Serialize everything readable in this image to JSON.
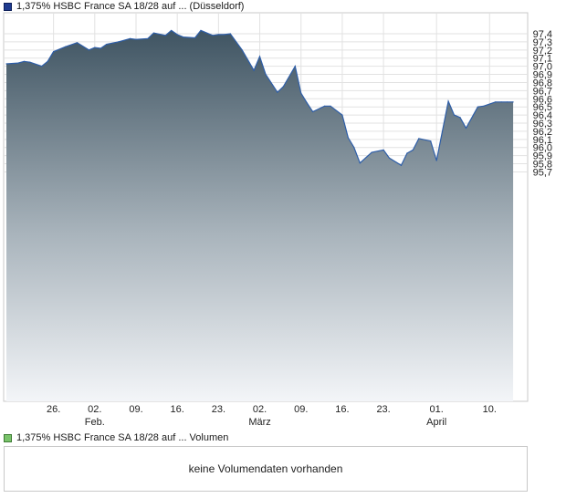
{
  "legend": {
    "price_label": "1,375% HSBC France SA 18/28 auf ... (Düsseldorf)",
    "volume_label": "1,375% HSBC France SA 18/28 auf ... Volumen",
    "price_color": "#1f3b8f",
    "volume_color": "#79c36a"
  },
  "volume_panel": {
    "message": "keine Volumendaten vorhanden"
  },
  "chart_data": {
    "type": "area",
    "ylim": [
      95.63,
      97.5
    ],
    "yticks": [
      "97,4",
      "97,3",
      "97,2",
      "97,1",
      "97,0",
      "96,9",
      "96,8",
      "96,7",
      "96,6",
      "96,5",
      "96,4",
      "96,3",
      "96,2",
      "96,1",
      "96,0",
      "95,9",
      "95,8",
      "95,7"
    ],
    "ytick_values": [
      97.4,
      97.3,
      97.2,
      97.1,
      97.0,
      96.9,
      96.8,
      96.7,
      96.6,
      96.5,
      96.4,
      96.3,
      96.2,
      96.1,
      96.0,
      95.9,
      95.8,
      95.7
    ],
    "xlim": [
      "2021-01-18",
      "2021-04-16"
    ],
    "xticks": [
      {
        "date": "2021-01-26",
        "label": "26.",
        "sublabel": ""
      },
      {
        "date": "2021-02-02",
        "label": "02.",
        "sublabel": "Feb."
      },
      {
        "date": "2021-02-09",
        "label": "09.",
        "sublabel": ""
      },
      {
        "date": "2021-02-16",
        "label": "16.",
        "sublabel": ""
      },
      {
        "date": "2021-02-23",
        "label": "23.",
        "sublabel": ""
      },
      {
        "date": "2021-03-02",
        "label": "02.",
        "sublabel": "März"
      },
      {
        "date": "2021-03-09",
        "label": "09.",
        "sublabel": ""
      },
      {
        "date": "2021-03-16",
        "label": "16.",
        "sublabel": ""
      },
      {
        "date": "2021-03-23",
        "label": "23.",
        "sublabel": ""
      },
      {
        "date": "2021-04-01",
        "label": "01.",
        "sublabel": "April"
      },
      {
        "date": "2021-04-10",
        "label": "10.",
        "sublabel": ""
      }
    ],
    "x": [
      "2021-01-18",
      "2021-01-20",
      "2021-01-21",
      "2021-01-22",
      "2021-01-24",
      "2021-01-25",
      "2021-01-26",
      "2021-01-28",
      "2021-01-30",
      "2021-02-01",
      "2021-02-02",
      "2021-02-03",
      "2021-02-04",
      "2021-02-06",
      "2021-02-08",
      "2021-02-09",
      "2021-02-11",
      "2021-02-12",
      "2021-02-14",
      "2021-02-15",
      "2021-02-16",
      "2021-02-17",
      "2021-02-19",
      "2021-02-20",
      "2021-02-22",
      "2021-02-23",
      "2021-02-24",
      "2021-02-25",
      "2021-02-27",
      "2021-03-01",
      "2021-03-02",
      "2021-03-03",
      "2021-03-05",
      "2021-03-06",
      "2021-03-08",
      "2021-03-09",
      "2021-03-10",
      "2021-03-11",
      "2021-03-13",
      "2021-03-14",
      "2021-03-16",
      "2021-03-17",
      "2021-03-18",
      "2021-03-19",
      "2021-03-21",
      "2021-03-23",
      "2021-03-24",
      "2021-03-26",
      "2021-03-27",
      "2021-03-28",
      "2021-03-29",
      "2021-03-31",
      "2021-04-01",
      "2021-04-03",
      "2021-04-04",
      "2021-04-05",
      "2021-04-06",
      "2021-04-08",
      "2021-04-09",
      "2021-04-11",
      "2021-04-12",
      "2021-04-13",
      "2021-04-14"
    ],
    "series": [
      {
        "values": [
          97.03,
          97.04,
          97.06,
          97.05,
          97.0,
          97.06,
          97.18,
          97.24,
          97.29,
          97.2,
          97.23,
          97.22,
          97.27,
          97.3,
          97.34,
          97.33,
          97.34,
          97.41,
          97.38,
          97.44,
          97.39,
          97.36,
          97.35,
          97.44,
          97.38,
          97.39,
          97.39,
          97.4,
          97.2,
          96.95,
          97.12,
          96.9,
          96.68,
          96.75,
          97.0,
          96.67,
          96.55,
          96.44,
          96.51,
          96.51,
          96.4,
          96.12,
          96.0,
          95.81,
          95.94,
          95.97,
          95.87,
          95.78,
          95.93,
          95.97,
          96.11,
          96.08,
          95.84,
          96.57,
          96.4,
          96.37,
          96.24,
          96.5,
          96.51,
          96.56,
          96.56,
          96.56,
          96.56
        ]
      }
    ],
    "grid": true,
    "yaxis_side": "right"
  }
}
